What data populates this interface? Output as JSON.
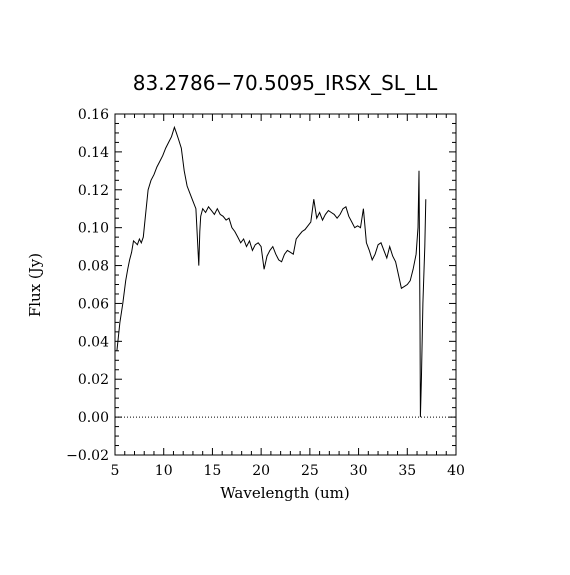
{
  "chart_data": {
    "type": "line",
    "title": "83.2786−70.5095_IRSX_SL_LL",
    "xlabel": "Wavelength (um)",
    "ylabel": "Flux (Jy)",
    "xlim": [
      5,
      40
    ],
    "ylim": [
      -0.02,
      0.16
    ],
    "xticks": [
      "5",
      "10",
      "15",
      "20",
      "25",
      "30",
      "35",
      "40"
    ],
    "yticks": [
      "−0.02",
      "0.00",
      "0.02",
      "0.04",
      "0.06",
      "0.08",
      "0.10",
      "0.12",
      "0.14",
      "0.16"
    ],
    "zero_reference_line": {
      "y": 0.0,
      "style": "dotted"
    },
    "grid": false,
    "legend": "none",
    "colors": {
      "line": "#000000",
      "background": "#ffffff"
    },
    "series": [
      {
        "x": [
          5.2,
          5.5,
          5.8,
          6.1,
          6.3,
          6.5,
          6.7,
          6.9,
          7.1,
          7.3,
          7.5,
          7.7,
          7.9,
          8.1,
          8.4,
          8.7,
          9.0,
          9.3,
          9.6,
          9.9,
          10.2,
          10.5,
          10.8,
          11.1,
          11.3,
          11.5,
          11.8,
          12.1,
          12.4,
          12.7,
          13.0,
          13.3,
          13.6,
          13.7,
          13.8,
          14.0,
          14.3,
          14.6,
          14.9,
          15.2,
          15.5,
          15.8,
          16.1,
          16.4,
          16.7,
          17.0,
          17.3,
          17.6,
          17.9,
          18.2,
          18.5,
          18.8,
          19.1,
          19.4,
          19.7,
          20.0,
          20.3,
          20.6,
          20.9,
          21.2,
          21.5,
          21.8,
          22.1,
          22.4,
          22.7,
          23.0,
          23.3,
          23.6,
          23.9,
          24.2,
          24.5,
          24.8,
          25.1,
          25.4,
          25.7,
          26.0,
          26.3,
          26.6,
          26.9,
          27.2,
          27.5,
          27.8,
          28.1,
          28.4,
          28.7,
          29.0,
          29.3,
          29.6,
          29.9,
          30.2,
          30.5,
          30.8,
          31.1,
          31.4,
          31.7,
          32.0,
          32.3,
          32.6,
          32.9,
          33.2,
          33.5,
          33.8,
          34.1,
          34.4,
          34.7,
          35.0,
          35.3,
          35.6,
          35.9,
          36.1,
          36.2,
          36.3,
          36.35,
          36.45,
          36.6,
          36.8,
          36.9
        ],
        "y": [
          0.035,
          0.05,
          0.06,
          0.072,
          0.078,
          0.083,
          0.087,
          0.093,
          0.092,
          0.091,
          0.094,
          0.092,
          0.095,
          0.105,
          0.12,
          0.125,
          0.128,
          0.132,
          0.135,
          0.138,
          0.142,
          0.145,
          0.148,
          0.153,
          0.15,
          0.147,
          0.142,
          0.13,
          0.122,
          0.118,
          0.114,
          0.11,
          0.08,
          0.098,
          0.106,
          0.11,
          0.108,
          0.111,
          0.109,
          0.107,
          0.11,
          0.107,
          0.106,
          0.104,
          0.105,
          0.1,
          0.098,
          0.095,
          0.092,
          0.094,
          0.09,
          0.093,
          0.088,
          0.091,
          0.092,
          0.09,
          0.078,
          0.085,
          0.088,
          0.09,
          0.086,
          0.083,
          0.082,
          0.086,
          0.088,
          0.087,
          0.086,
          0.094,
          0.096,
          0.098,
          0.099,
          0.101,
          0.103,
          0.115,
          0.105,
          0.108,
          0.104,
          0.107,
          0.109,
          0.108,
          0.107,
          0.105,
          0.107,
          0.11,
          0.111,
          0.106,
          0.103,
          0.1,
          0.101,
          0.1,
          0.11,
          0.092,
          0.088,
          0.083,
          0.086,
          0.091,
          0.092,
          0.088,
          0.084,
          0.09,
          0.085,
          0.082,
          0.075,
          0.068,
          0.069,
          0.07,
          0.072,
          0.078,
          0.086,
          0.1,
          0.13,
          0.05,
          0.0,
          0.02,
          0.06,
          0.09,
          0.115
        ]
      }
    ]
  }
}
